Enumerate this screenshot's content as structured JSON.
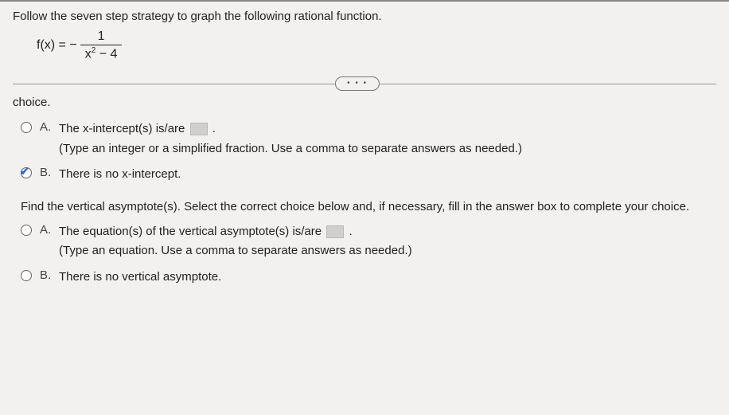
{
  "instruction": "Follow the seven step strategy to graph the following rational function.",
  "formula": {
    "lhs": "f(x) = −",
    "numerator": "1",
    "denominator_pre": "x",
    "denominator_exp": "2",
    "denominator_post": " − 4"
  },
  "ellipsis": "• • •",
  "section1_label": "choice.",
  "q1": {
    "optA": {
      "letter": "A.",
      "text": "The x-intercept(s) is/are ",
      "hint": "(Type an integer or a simplified fraction. Use a comma to separate answers as needed.)"
    },
    "optB": {
      "letter": "B.",
      "text": "There is no x-intercept."
    }
  },
  "q2_prompt": "Find the vertical asymptote(s). Select the correct choice below and, if necessary, fill in the answer box to complete your choice.",
  "q2": {
    "optA": {
      "letter": "A.",
      "text": "The equation(s) of the vertical asymptote(s) is/are ",
      "hint": "(Type an equation. Use a comma to separate answers as needed.)"
    },
    "optB": {
      "letter": "B.",
      "text": "There is no vertical asymptote."
    }
  },
  "colors": {
    "bg": "#f2f1ef",
    "text": "#222",
    "checkmark": "#2a6fd6"
  }
}
